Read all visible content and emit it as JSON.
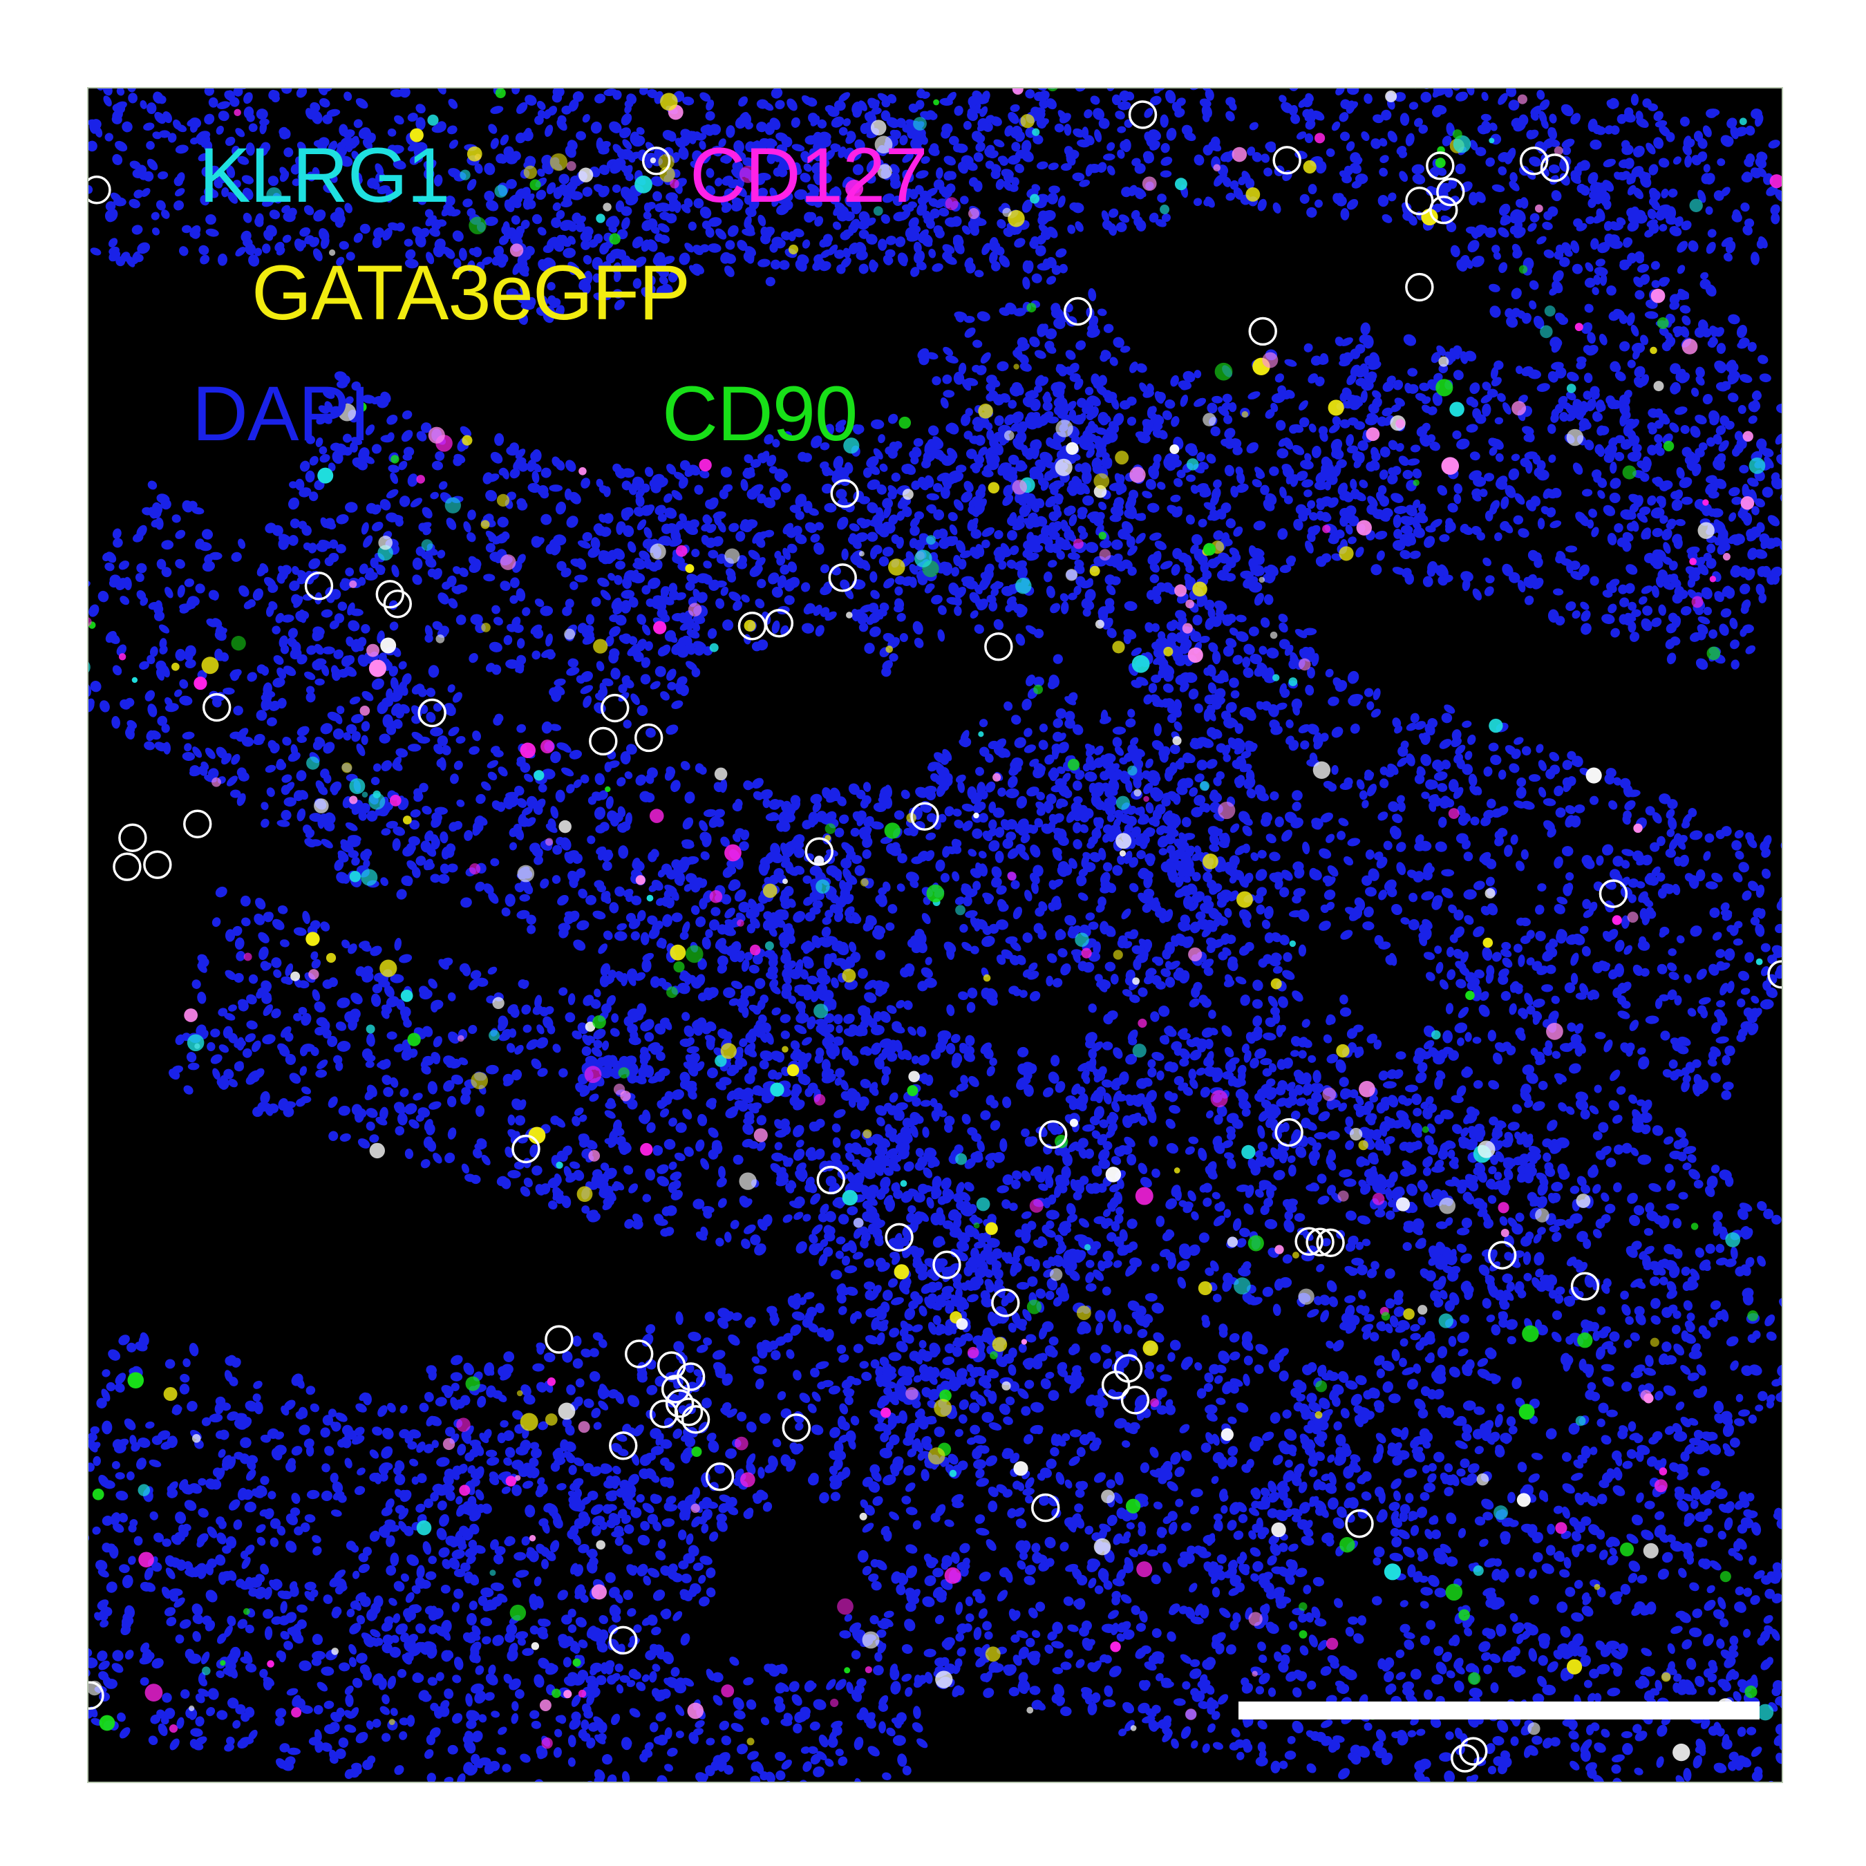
{
  "micrograph": {
    "background_color": "#000000",
    "frame_border_color": "#b8c7b0",
    "content": "multi-channel immunofluorescence of tissue sections with nuclei (DAPI) and circled cells",
    "channels": [
      {
        "key": "klrg1",
        "label": "KLRG1",
        "color": "#1fe0e0"
      },
      {
        "key": "cd127",
        "label": "CD127",
        "color": "#ff22e6"
      },
      {
        "key": "gata3",
        "label": "GATA3eGFP",
        "color": "#f2ec10"
      },
      {
        "key": "dapi",
        "label": "DAPI",
        "color": "#1a22e8"
      },
      {
        "key": "cd90",
        "label": "CD90",
        "color": "#18e018"
      }
    ],
    "marker_ring_color": "#ffffff",
    "scale_bar_color": "#ffffff"
  }
}
